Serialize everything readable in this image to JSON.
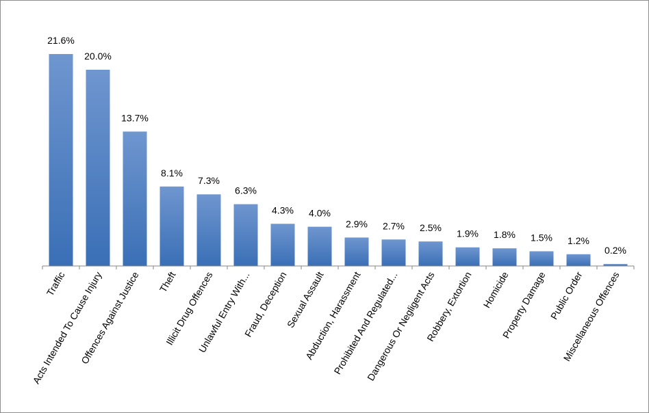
{
  "chart_data": {
    "type": "bar",
    "categories": [
      "Traffic",
      "Acts Intended To Cause Injury",
      "Offences Against Justice",
      "Theft",
      "Illicit Drug Offences",
      "Unlawful Entry With...",
      "Fraud, Deception",
      "Sexual Assault",
      "Abduction, Harassment",
      "Prohibited And Regulated...",
      "Dangerous Or Negligent Acts",
      "Robbery, Extortion",
      "Homicide",
      "Property Damage",
      "Public Order",
      "Miscellaneous Offences"
    ],
    "values": [
      21.6,
      20.0,
      13.7,
      8.1,
      7.3,
      6.3,
      4.3,
      4.0,
      2.9,
      2.7,
      2.5,
      1.9,
      1.8,
      1.5,
      1.2,
      0.2
    ],
    "data_labels": [
      "21.6%",
      "20.0%",
      "13.7%",
      "8.1%",
      "7.3%",
      "6.3%",
      "4.3%",
      "4.0%",
      "2.9%",
      "2.7%",
      "2.5%",
      "1.9%",
      "1.8%",
      "1.5%",
      "1.2%",
      "0.2%"
    ],
    "title": "",
    "xlabel": "",
    "ylabel": "",
    "grid": false,
    "legend": "none",
    "colors": {
      "bar_top": "#6f96cf",
      "bar_bottom": "#3a6fb6",
      "axis": "#868686"
    }
  }
}
